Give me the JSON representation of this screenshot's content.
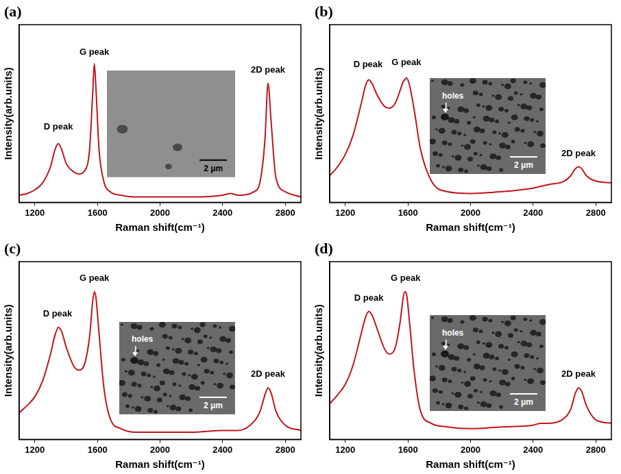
{
  "chart_data": [
    {
      "panel": "(a)",
      "type": "line",
      "color": "#c0141c",
      "x_label": "Raman shift(cm⁻¹)",
      "y_label": "Intensity(arb.units)",
      "x": [
        1100,
        1150,
        1200,
        1250,
        1300,
        1330,
        1350,
        1370,
        1400,
        1450,
        1480,
        1520,
        1550,
        1570,
        1580,
        1590,
        1610,
        1640,
        1680,
        1750,
        1850,
        2000,
        2200,
        2400,
        2450,
        2500,
        2600,
        2640,
        2670,
        2690,
        2710,
        2740,
        2800,
        2900
      ],
      "values": [
        4,
        5,
        7,
        11,
        20,
        30,
        33,
        30,
        22,
        17,
        16,
        18,
        30,
        62,
        78,
        65,
        30,
        12,
        6,
        4,
        3,
        3,
        3,
        4,
        5,
        4,
        6,
        12,
        35,
        67,
        45,
        14,
        6,
        3
      ],
      "xlim": [
        1100,
        2900
      ],
      "xticks": [
        1200,
        1600,
        2000,
        2400,
        2800
      ],
      "ylim": [
        0,
        100
      ],
      "grid": false,
      "tick_labels": "x",
      "annotations": [
        {
          "text": "D peak",
          "x": 1350,
          "y": 40
        },
        {
          "text": "G peak",
          "x": 1580,
          "y": 82
        },
        {
          "text": "2D peak",
          "x": 2690,
          "y": 72
        }
      ],
      "inset": {
        "scale_bar": "2 μm"
      }
    },
    {
      "panel": "(b)",
      "type": "line",
      "color": "#c0141c",
      "x_label": "Raman shift(cm⁻¹)",
      "y_label": "Intensity(arb.units)",
      "x": [
        1100,
        1150,
        1200,
        1250,
        1300,
        1330,
        1350,
        1370,
        1400,
        1450,
        1480,
        1520,
        1550,
        1570,
        1580,
        1590,
        1610,
        1640,
        1680,
        1750,
        1850,
        2000,
        2200,
        2400,
        2450,
        2500,
        2600,
        2640,
        2670,
        2690,
        2710,
        2740,
        2800,
        2900
      ],
      "values": [
        15,
        20,
        27,
        38,
        55,
        66,
        69,
        67,
        61,
        54,
        53,
        56,
        63,
        68,
        69,
        70,
        66,
        52,
        30,
        12,
        6,
        5,
        6,
        8,
        9,
        10,
        12,
        15,
        19,
        20,
        19,
        15,
        12,
        11
      ],
      "xlim": [
        1100,
        2900
      ],
      "xticks": [
        1200,
        1600,
        2000,
        2400,
        2800
      ],
      "ylim": [
        0,
        100
      ],
      "grid": false,
      "tick_labels": "x",
      "annotations": [
        {
          "text": "D peak",
          "x": 1345,
          "y": 75
        },
        {
          "text": "G peak",
          "x": 1590,
          "y": 76
        },
        {
          "text": "2D peak",
          "x": 2690,
          "y": 25
        }
      ],
      "inset": {
        "scale_bar": "2 μm",
        "callouts": [
          "holes"
        ]
      }
    },
    {
      "panel": "(c)",
      "type": "line",
      "color": "#c0141c",
      "x_label": "Raman shift(cm⁻¹)",
      "y_label": "Intensity(arb.units)",
      "x": [
        1100,
        1150,
        1200,
        1250,
        1300,
        1330,
        1350,
        1370,
        1400,
        1450,
        1480,
        1520,
        1550,
        1570,
        1580,
        1590,
        1610,
        1640,
        1680,
        1750,
        1850,
        2000,
        2200,
        2400,
        2450,
        2500,
        2600,
        2640,
        2670,
        2690,
        2710,
        2740,
        2800,
        2900
      ],
      "values": [
        15,
        19,
        24,
        33,
        48,
        59,
        63,
        61,
        52,
        41,
        39,
        43,
        58,
        78,
        83,
        80,
        60,
        30,
        12,
        6,
        4,
        4,
        4,
        5,
        5,
        5,
        10,
        16,
        25,
        29,
        26,
        16,
        8,
        5
      ],
      "xlim": [
        1100,
        2900
      ],
      "xticks": [
        1200,
        1600,
        2000,
        2400,
        2800
      ],
      "ylim": [
        0,
        100
      ],
      "grid": false,
      "tick_labels": "x",
      "annotations": [
        {
          "text": "D peak",
          "x": 1345,
          "y": 68
        },
        {
          "text": "G peak",
          "x": 1580,
          "y": 88
        },
        {
          "text": "2D peak",
          "x": 2690,
          "y": 34
        }
      ],
      "inset": {
        "scale_bar": "2 μm",
        "callouts": [
          "holes"
        ]
      }
    },
    {
      "panel": "(d)",
      "type": "line",
      "color": "#c0141c",
      "x_label": "Raman shift(cm⁻¹)",
      "y_label": "Intensity(arb.units)",
      "x": [
        1100,
        1150,
        1200,
        1250,
        1300,
        1330,
        1350,
        1370,
        1400,
        1450,
        1480,
        1520,
        1550,
        1570,
        1580,
        1590,
        1610,
        1640,
        1680,
        1750,
        1850,
        2000,
        2200,
        2400,
        2450,
        2500,
        2600,
        2640,
        2670,
        2690,
        2710,
        2740,
        2800,
        2900
      ],
      "values": [
        20,
        25,
        31,
        42,
        59,
        69,
        72,
        70,
        63,
        51,
        48,
        52,
        66,
        80,
        83,
        82,
        66,
        38,
        16,
        9,
        7,
        6,
        7,
        8,
        9,
        9,
        12,
        17,
        26,
        29,
        27,
        19,
        11,
        9
      ],
      "xlim": [
        1100,
        2900
      ],
      "xticks": [
        1200,
        1600,
        2000,
        2400,
        2800
      ],
      "ylim": [
        0,
        100
      ],
      "grid": false,
      "tick_labels": "x",
      "annotations": [
        {
          "text": "D peak",
          "x": 1350,
          "y": 77
        },
        {
          "text": "G peak",
          "x": 1585,
          "y": 88
        },
        {
          "text": "2D peak",
          "x": 2690,
          "y": 34
        }
      ],
      "inset": {
        "scale_bar": "2 μm",
        "callouts": [
          "holes"
        ]
      }
    }
  ]
}
